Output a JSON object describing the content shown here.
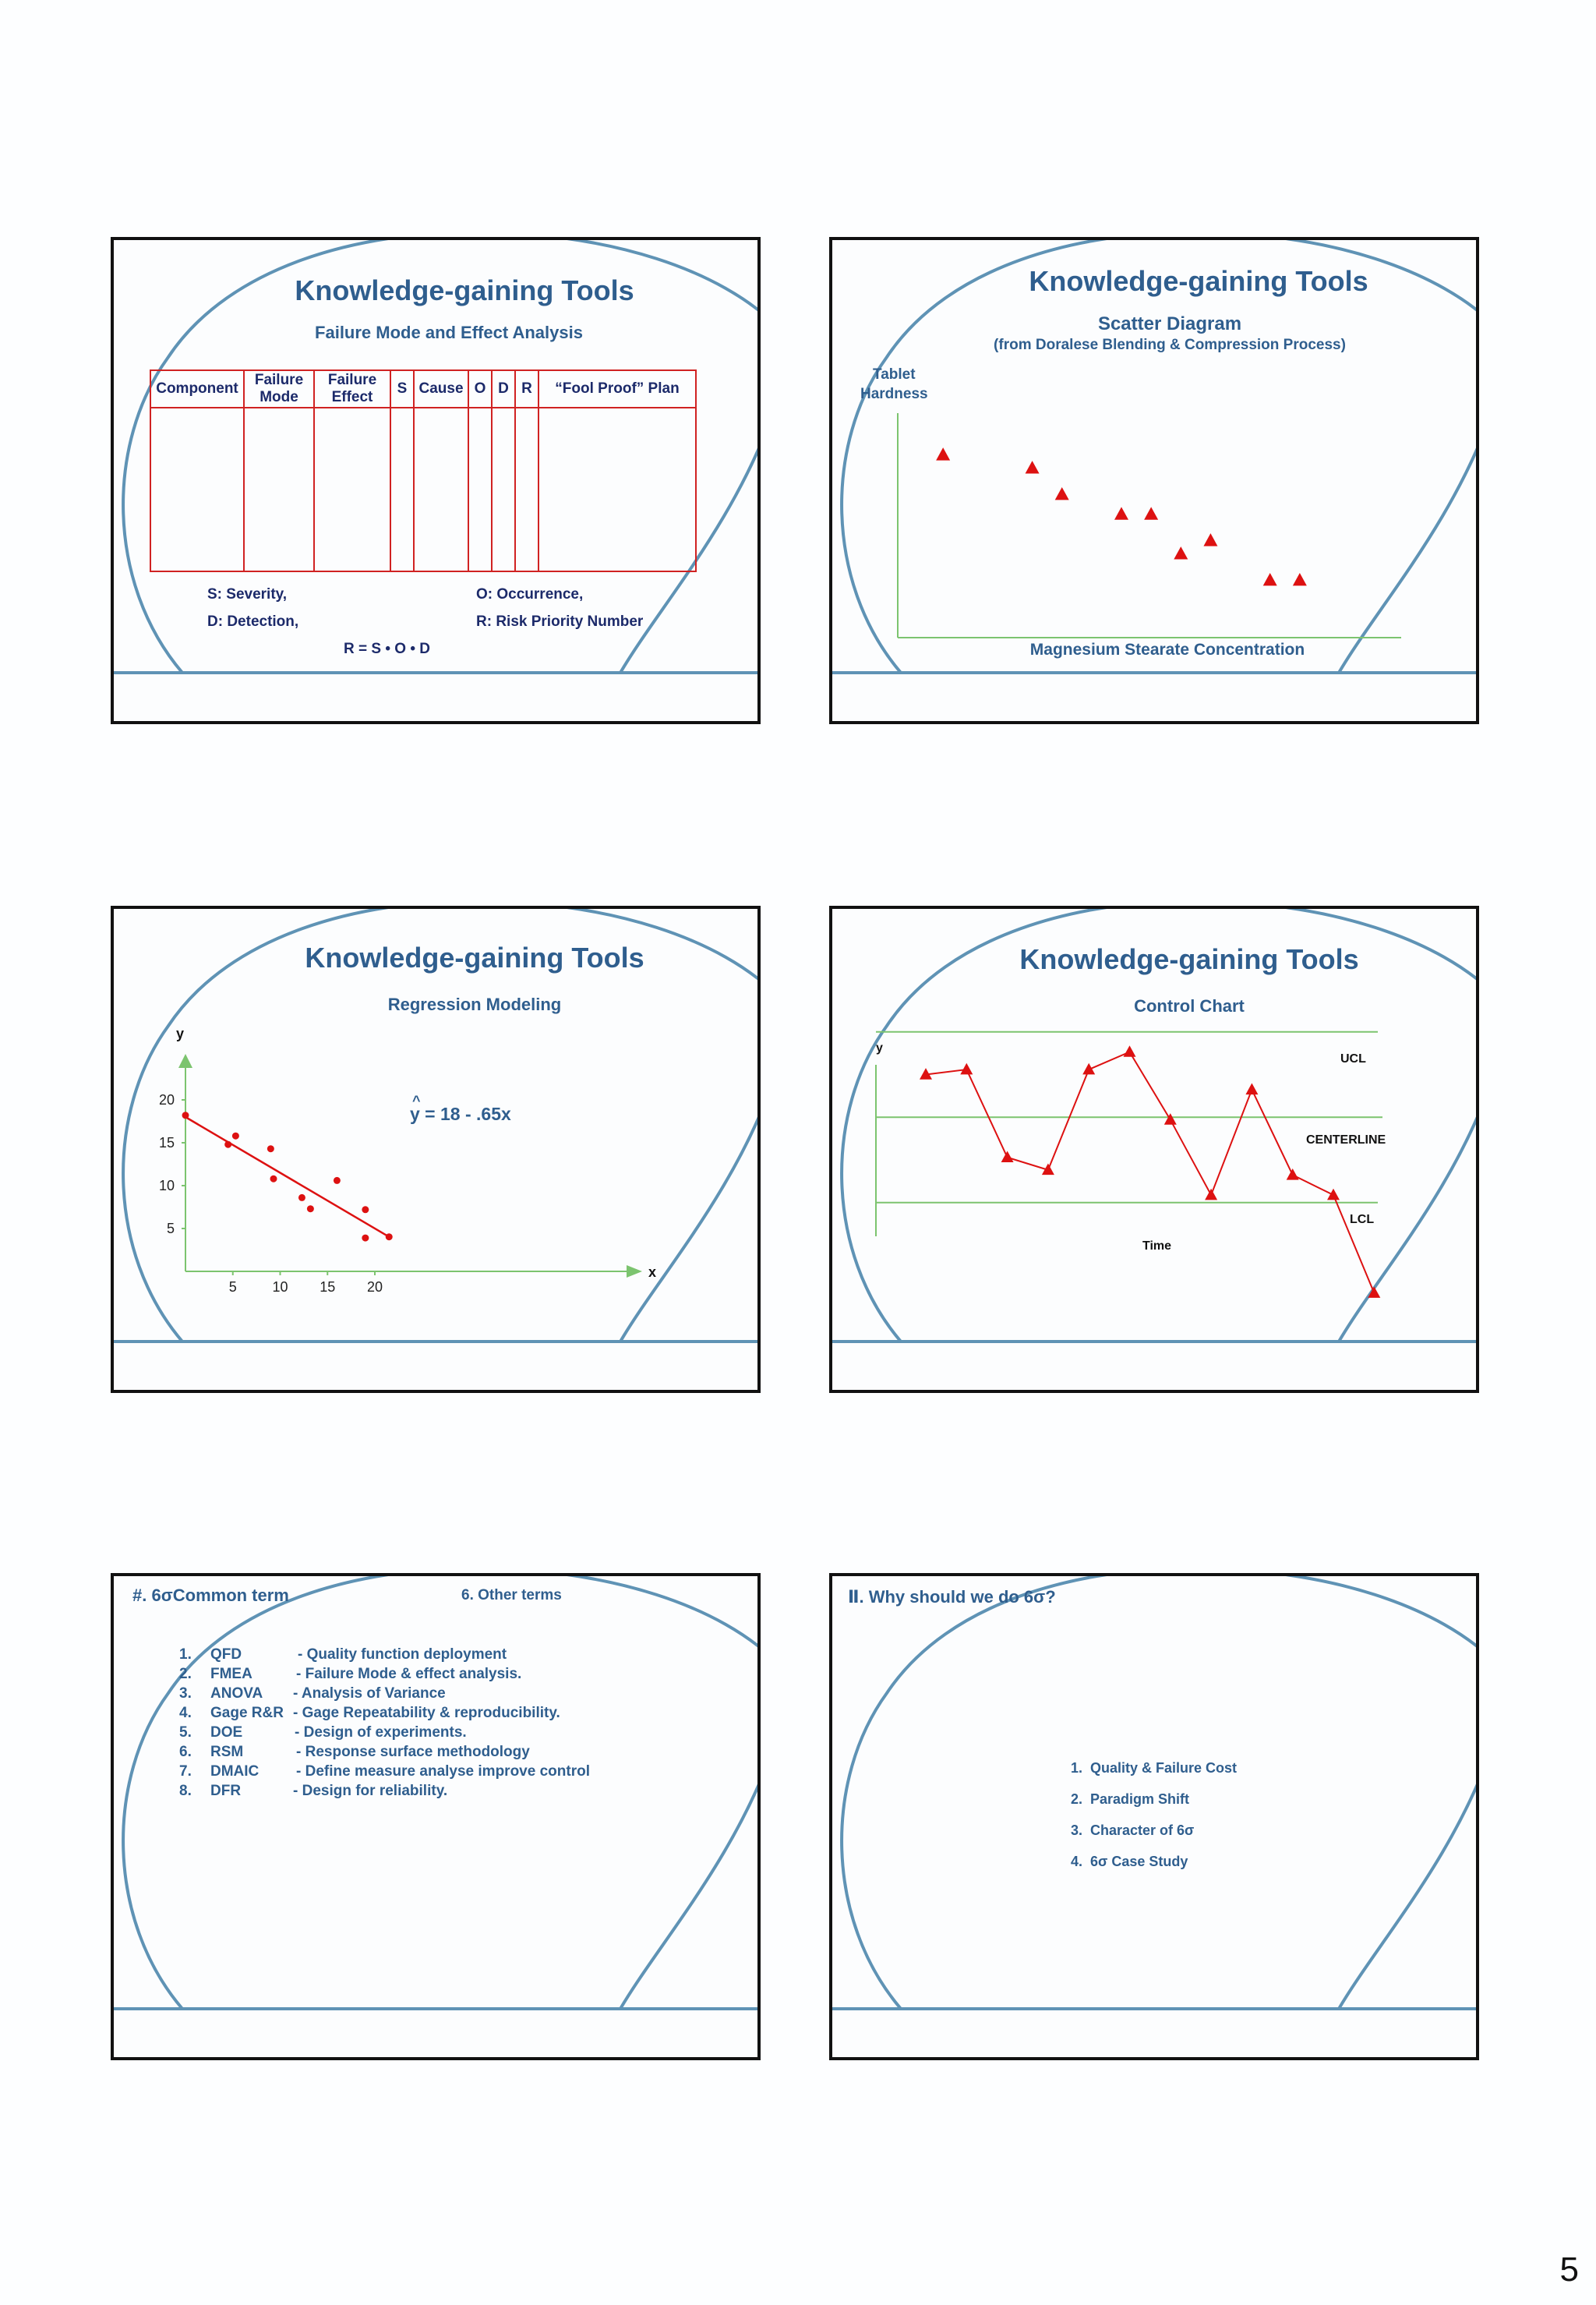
{
  "page_number": "5",
  "slide1": {
    "title": "Knowledge-gaining Tools",
    "subtitle": "Failure Mode and Effect Analysis",
    "headers": [
      "Component",
      "Failure Mode",
      "Failure Effect",
      "S",
      "Cause",
      "O",
      "D",
      "R",
      "“Fool Proof” Plan"
    ],
    "legend": [
      "S: Severity,",
      "O: Occurrence,",
      "D: Detection,",
      "R: Risk Priority Number"
    ],
    "formula": "R = S • O • D"
  },
  "slide2": {
    "title": "Knowledge-gaining Tools",
    "subtitle": "Scatter Diagram",
    "subtitle2": "(from Doralese Blending & Compression Process)",
    "ylabel_1": "Tablet",
    "ylabel_2": "Hardness",
    "xlabel": "Magnesium Stearate Concentration",
    "marker_color": "#dd1111",
    "axis_color": "#7cc46f"
  },
  "slide3": {
    "title": "Knowledge-gaining Tools",
    "subtitle": "Regression Modeling",
    "equation": "y = 18 - .65x",
    "y_letter": "y",
    "x_letter": "x"
  },
  "slide4": {
    "title": "Knowledge-gaining Tools",
    "subtitle": "Control Chart",
    "y_letter": "y",
    "ucl": "UCL",
    "centerline": "CENTERLINE",
    "lcl": "LCL",
    "xlabel": "Time"
  },
  "slide5": {
    "heading": "#. 6σCommon term",
    "section": "6. Other terms",
    "items": [
      {
        "num": "1.",
        "term": "QFD",
        "desc": "- Quality function deployment"
      },
      {
        "num": "2.",
        "term": "FMEA",
        "desc": "- Failure Mode & effect analysis."
      },
      {
        "num": "3.",
        "term": "ANOVA",
        "desc": "- Analysis of Variance"
      },
      {
        "num": "4.",
        "term": "Gage R&R",
        "desc": "- Gage Repeatability & reproducibility."
      },
      {
        "num": "5.",
        "term": "DOE",
        "desc": "- Design of experiments."
      },
      {
        "num": "6.",
        "term": "RSM",
        "desc": "- Response surface methodology"
      },
      {
        "num": "7.",
        "term": "DMAIC",
        "desc": "- Define measure analyse improve control"
      },
      {
        "num": "8.",
        "term": "DFR",
        "desc": "- Design for reliability."
      }
    ]
  },
  "slide6": {
    "heading": "Ⅱ. Why should we do 6σ?",
    "items": [
      "1.  Quality & Failure Cost",
      "2.  Paradigm Shift",
      "3.  Character of 6σ",
      "4.  6σ Case Study"
    ]
  },
  "chart_data": [
    {
      "type": "scatter",
      "title": "Scatter Diagram",
      "subtitle": "(from Doralese Blending & Compression Process)",
      "xlabel": "Magnesium Stearate Concentration",
      "ylabel": "Tablet Hardness",
      "x": [
        1,
        4,
        5,
        7,
        8,
        9,
        10,
        12,
        13
      ],
      "y": [
        7.6,
        7.2,
        6.4,
        5.8,
        5.8,
        4.6,
        5.0,
        3.8,
        3.8
      ],
      "marker": "triangle"
    },
    {
      "type": "scatter",
      "title": "Regression Modeling",
      "xlabel": "x",
      "ylabel": "y",
      "x": [
        0,
        4.5,
        5.3,
        9,
        9.3,
        12.3,
        13.2,
        16,
        19,
        19
      ],
      "y": [
        18.2,
        14.8,
        15.8,
        14.3,
        10.8,
        8.6,
        7.3,
        10.6,
        7.2,
        3.9
      ],
      "regression": {
        "intercept": 18,
        "slope": -0.65,
        "x_range": [
          0,
          21.5
        ]
      },
      "xticks": [
        5,
        10,
        15,
        20
      ],
      "yticks": [
        5,
        10,
        15,
        20
      ],
      "xlim": [
        0,
        24
      ],
      "ylim": [
        0,
        23
      ]
    },
    {
      "type": "line",
      "title": "Control Chart",
      "xlabel": "Time",
      "ylabel": "y",
      "x": [
        1,
        2,
        3,
        4,
        5,
        6,
        7,
        8,
        9,
        10,
        11,
        12
      ],
      "y": [
        6.6,
        6.8,
        3.3,
        2.8,
        6.8,
        7.5,
        4.8,
        1.8,
        6.0,
        2.6,
        1.8,
        -2.1
      ],
      "ucl": 8.3,
      "centerline": 4.9,
      "lcl": 1.5,
      "marker": "triangle"
    }
  ]
}
